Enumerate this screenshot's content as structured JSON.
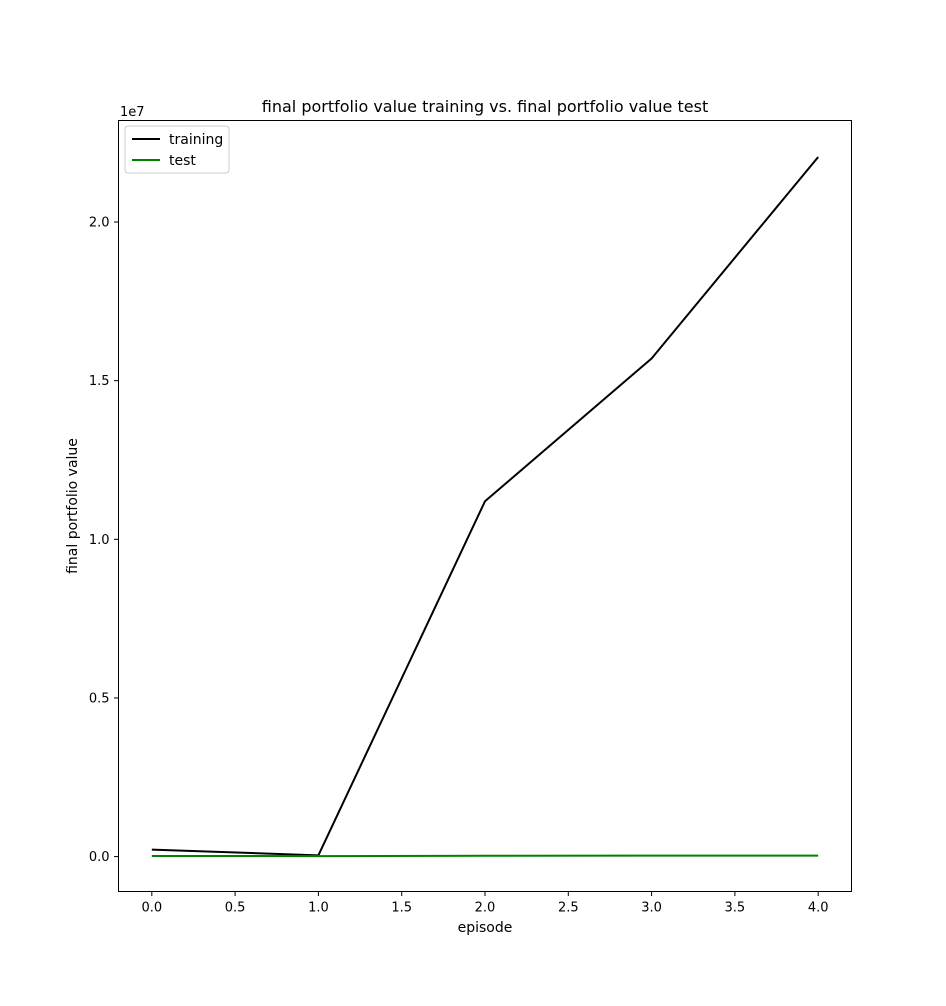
{
  "chart_data": {
    "type": "line",
    "title": "final portfolio value training vs. final portfolio value test",
    "xlabel": "episode",
    "ylabel": "final portfolio value",
    "y_offset_label": "1e7",
    "x": [
      0,
      1,
      2,
      3,
      4
    ],
    "xlim": [
      -0.2,
      4.2
    ],
    "ylim": [
      -1100000,
      23200000
    ],
    "x_ticks": [
      0.0,
      0.5,
      1.0,
      1.5,
      2.0,
      2.5,
      3.0,
      3.5,
      4.0
    ],
    "x_tick_labels": [
      "0.0",
      "0.5",
      "1.0",
      "1.5",
      "2.0",
      "2.5",
      "3.0",
      "3.5",
      "4.0"
    ],
    "y_ticks": [
      0,
      5000000,
      10000000,
      15000000,
      20000000
    ],
    "y_tick_labels": [
      "0.0",
      "0.5",
      "1.0",
      "1.5",
      "2.0"
    ],
    "grid": false,
    "legend_position": "upper-left",
    "series": [
      {
        "name": "training",
        "color": "#000000",
        "values": [
          220000,
          40000,
          11200000,
          15700000,
          22050000
        ]
      },
      {
        "name": "test",
        "color": "#008000",
        "values": [
          20000,
          15000,
          25000,
          30000,
          30000
        ]
      }
    ]
  }
}
